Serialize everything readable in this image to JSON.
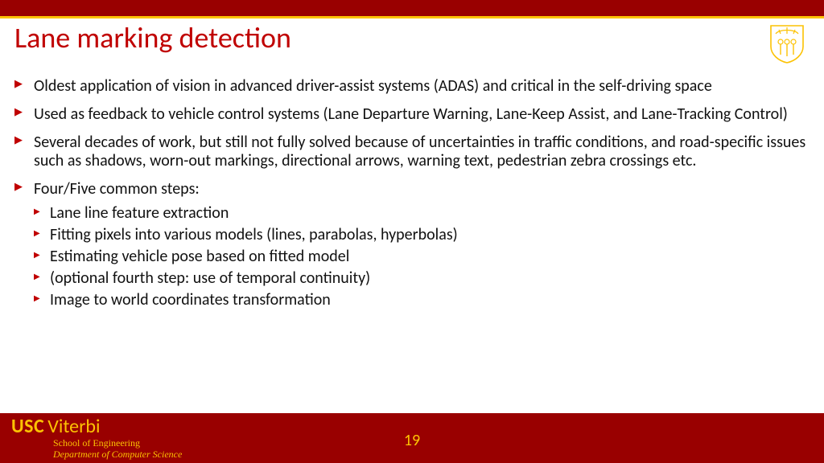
{
  "colors": {
    "cardinal": "#990000",
    "gold": "#fcc203",
    "title_red": "#c00000",
    "text": "#111111",
    "background": "#ffffff"
  },
  "title": "Lane marking detection",
  "bullets": [
    {
      "text": "Oldest application of vision in advanced driver-assist systems (ADAS) and critical in the self-driving space"
    },
    {
      "text": "Used as feedback to vehicle control systems (Lane Departure Warning, Lane-Keep Assist, and Lane-Tracking Control)"
    },
    {
      "text": "Several decades of work, but still not fully solved because of uncertainties in traffic conditions, and road-specific issues such as shadows, worn-out markings, directional arrows, warning text, pedestrian zebra crossings etc."
    },
    {
      "text": "Four/Five common steps:",
      "sub": [
        "Lane line feature extraction",
        "Fitting pixels into various models (lines, parabolas, hyperbolas)",
        "Estimating vehicle pose based on fitted model",
        "(optional fourth step: use of temporal continuity)",
        "Image to world coordinates transformation"
      ]
    }
  ],
  "footer": {
    "usc": "USC",
    "viterbi": "Viterbi",
    "school": "School of Engineering",
    "dept": "Department of Computer Science",
    "page": "19"
  },
  "typography": {
    "title_fontsize": 36,
    "body_fontsize": 20,
    "footer_brand_fontsize": 24,
    "footer_small_fontsize": 12
  }
}
